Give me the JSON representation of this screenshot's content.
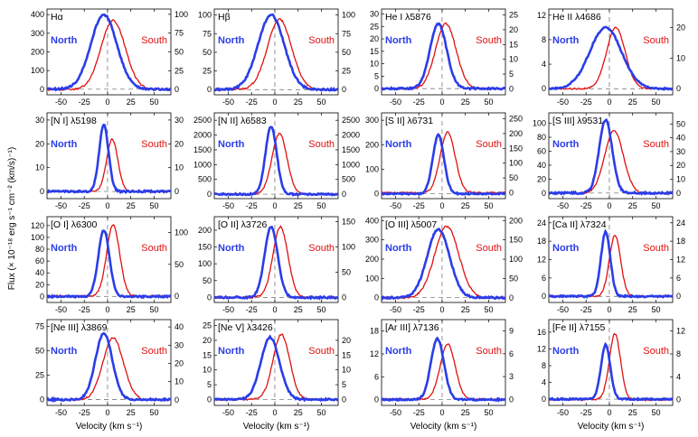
{
  "chart_data": {
    "type": "line",
    "figure": {
      "xlabel": "Velocity (km s⁻¹)",
      "ylabel": "Flux (× 10⁻¹⁸ erg s⁻¹ cm⁻² (km/s)⁻¹)",
      "xlim": [
        -65,
        68
      ],
      "xticks": [
        -50,
        -25,
        0,
        25,
        50
      ],
      "north_label": "North",
      "south_label": "South",
      "north_color": "#2b3de8",
      "south_color": "#e01010"
    },
    "panels": [
      {
        "title": "Hα",
        "left_ylim": [
          -30,
          430
        ],
        "left_ticks": [
          0,
          100,
          200,
          300,
          400
        ],
        "right_ylim": [
          -7,
          107
        ],
        "right_ticks": [
          0,
          25,
          50,
          75,
          100
        ],
        "north": {
          "amp": 400,
          "center": -4,
          "sigma": 14
        },
        "south": {
          "amp": 92,
          "center": 6,
          "sigma": 13
        }
      },
      {
        "title": "Hβ",
        "left_ylim": [
          -7,
          108
        ],
        "left_ticks": [
          0,
          25,
          50,
          75,
          100
        ],
        "right_ylim": [
          -7,
          108
        ],
        "right_ticks": [
          0,
          25,
          50,
          75,
          100
        ],
        "north": {
          "amp": 100,
          "center": -4,
          "sigma": 14
        },
        "south": {
          "amp": 94,
          "center": 5,
          "sigma": 13
        }
      },
      {
        "title": "He I λ5876",
        "left_ylim": [
          -2.5,
          32
        ],
        "left_ticks": [
          0,
          5,
          10,
          15,
          20,
          25,
          30
        ],
        "right_ylim": [
          -2,
          27
        ],
        "right_ticks": [
          0,
          5,
          10,
          15,
          20,
          25
        ],
        "north": {
          "amp": 26,
          "center": -4,
          "sigma": 9
        },
        "south": {
          "amp": 22,
          "center": 4,
          "sigma": 11
        }
      },
      {
        "title": "He II λ4686",
        "left_ylim": [
          -1,
          13
        ],
        "left_ticks": [
          0,
          4,
          8,
          12
        ],
        "right_ylim": [
          -2,
          26
        ],
        "right_ticks": [
          0,
          10,
          20
        ],
        "north": {
          "amp": 10,
          "center": -4,
          "sigma": 17
        },
        "south": {
          "amp": 20,
          "center": 7,
          "sigma": 10
        }
      },
      {
        "title": "[N I] λ5198",
        "left_ylim": [
          -3,
          33
        ],
        "left_ticks": [
          0,
          10,
          20,
          30
        ],
        "right_ylim": [
          -3,
          33
        ],
        "right_ticks": [
          0,
          10,
          20,
          30
        ],
        "north": {
          "amp": 28,
          "center": -4,
          "sigma": 5
        },
        "south": {
          "amp": 22,
          "center": 5,
          "sigma": 6
        }
      },
      {
        "title": "[N II] λ6583",
        "left_ylim": [
          -150,
          2750
        ],
        "left_ticks": [
          0,
          500,
          1000,
          1500,
          2000,
          2500
        ],
        "right_ylim": [
          -150,
          2750
        ],
        "right_ticks": [
          0,
          500,
          1000,
          1500,
          2000,
          2500
        ],
        "north": {
          "amp": 2300,
          "center": -4,
          "sigma": 6
        },
        "south": {
          "amp": 2050,
          "center": 5,
          "sigma": 8
        }
      },
      {
        "title": "[S II] λ6731",
        "left_ylim": [
          -20,
          330
        ],
        "left_ticks": [
          0,
          100,
          200,
          300
        ],
        "right_ylim": [
          -20,
          270
        ],
        "right_ticks": [
          0,
          50,
          100,
          150,
          200,
          250
        ],
        "north": {
          "amp": 240,
          "center": -4,
          "sigma": 6
        },
        "south": {
          "amp": 205,
          "center": 6,
          "sigma": 8
        }
      },
      {
        "title": "[S III] λ9531",
        "left_ylim": [
          -8,
          115
        ],
        "left_ticks": [
          0,
          20,
          40,
          60,
          80,
          100
        ],
        "right_ylim": [
          -4,
          58
        ],
        "right_ticks": [
          0,
          10,
          20,
          30,
          40,
          50
        ],
        "north": {
          "amp": 105,
          "center": -4,
          "sigma": 7
        },
        "south": {
          "amp": 45,
          "center": 5,
          "sigma": 10
        }
      },
      {
        "title": "[O I] λ6300",
        "left_ylim": [
          -10,
          135
        ],
        "left_ticks": [
          0,
          20,
          40,
          60,
          80,
          100,
          120
        ],
        "right_ylim": [
          -10,
          125
        ],
        "right_ticks": [
          0,
          50,
          100
        ],
        "north": {
          "amp": 112,
          "center": -4,
          "sigma": 6
        },
        "south": {
          "amp": 112,
          "center": 6,
          "sigma": 7
        }
      },
      {
        "title": "[O II] λ3726",
        "left_ylim": [
          -15,
          240
        ],
        "left_ticks": [
          0,
          50,
          100,
          150,
          200
        ],
        "right_ylim": [
          -10,
          160
        ],
        "right_ticks": [
          0,
          50,
          100,
          150
        ],
        "north": {
          "amp": 210,
          "center": -4,
          "sigma": 7
        },
        "south": {
          "amp": 140,
          "center": 6,
          "sigma": 8
        }
      },
      {
        "title": "[O III] λ5007",
        "left_ylim": [
          -25,
          420
        ],
        "left_ticks": [
          0,
          100,
          200,
          300,
          400
        ],
        "right_ylim": [
          -12,
          210
        ],
        "right_ticks": [
          0,
          50,
          100,
          150,
          200
        ],
        "north": {
          "amp": 355,
          "center": -4,
          "sigma": 12
        },
        "south": {
          "amp": 185,
          "center": 5,
          "sigma": 13
        }
      },
      {
        "title": "[Ca II] λ7324",
        "left_ylim": [
          -2,
          26
        ],
        "left_ticks": [
          0,
          6,
          12,
          18,
          24
        ],
        "right_ylim": [
          -2,
          26
        ],
        "right_ticks": [
          0,
          6,
          12,
          18,
          24
        ],
        "north": {
          "amp": 21,
          "center": -4,
          "sigma": 5
        },
        "south": {
          "amp": 20,
          "center": 6,
          "sigma": 6
        }
      },
      {
        "title": "[Ne III] λ3869",
        "left_ylim": [
          -6,
          82
        ],
        "left_ticks": [
          0,
          25,
          50,
          75
        ],
        "right_ylim": [
          -3,
          44
        ],
        "right_ticks": [
          0,
          10,
          20,
          30,
          40
        ],
        "north": {
          "amp": 68,
          "center": -4,
          "sigma": 9
        },
        "south": {
          "amp": 34,
          "center": 6,
          "sigma": 11
        }
      },
      {
        "title": "[Ne V] λ3426",
        "left_ylim": [
          -2,
          27
        ],
        "left_ticks": [
          0,
          5,
          10,
          15,
          20,
          25
        ],
        "right_ylim": [
          -2,
          27
        ],
        "right_ticks": [
          0,
          5,
          10,
          15,
          20
        ],
        "north": {
          "amp": 21,
          "center": -5,
          "sigma": 10
        },
        "south": {
          "amp": 22,
          "center": 7,
          "sigma": 9
        }
      },
      {
        "title": "[Ar III] λ7136",
        "left_ylim": [
          -1.5,
          21
        ],
        "left_ticks": [
          0,
          6,
          12,
          18
        ],
        "right_ylim": [
          -0.8,
          10.5
        ],
        "right_ticks": [
          0,
          3,
          6,
          9
        ],
        "north": {
          "amp": 16,
          "center": -5,
          "sigma": 7
        },
        "south": {
          "amp": 7.3,
          "center": 6,
          "sigma": 8
        }
      },
      {
        "title": "[Fe II] λ7155",
        "left_ylim": [
          -1.5,
          19
        ],
        "left_ticks": [
          0,
          4,
          8,
          12,
          16
        ],
        "right_ylim": [
          -1,
          14
        ],
        "right_ticks": [
          0,
          4,
          8,
          12
        ],
        "north": {
          "amp": 13,
          "center": -4,
          "sigma": 5
        },
        "south": {
          "amp": 11.5,
          "center": 6,
          "sigma": 6
        }
      }
    ]
  }
}
